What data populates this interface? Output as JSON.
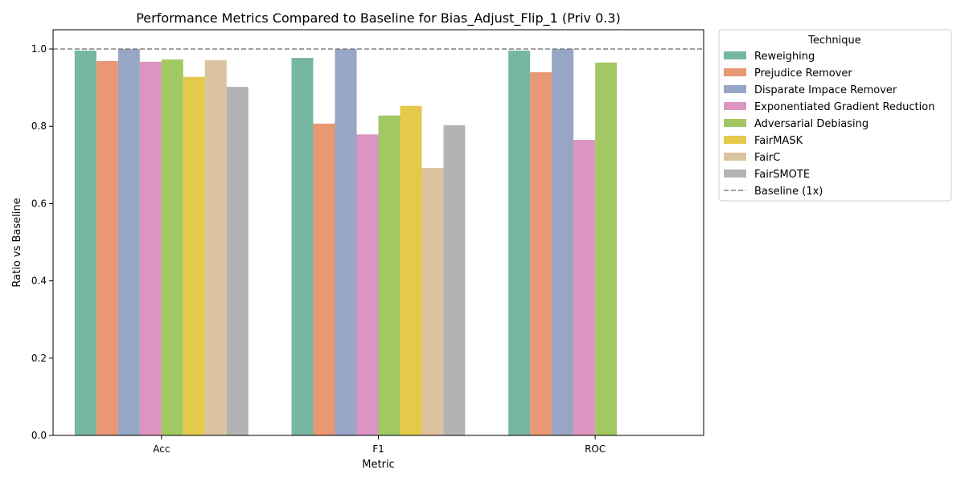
{
  "chart_data": {
    "type": "bar",
    "title": "Performance Metrics Compared to Baseline for Bias_Adjust_Flip_1 (Priv 0.3)",
    "xlabel": "Metric",
    "ylabel": "Ratio vs Baseline",
    "ylim": [
      0,
      1.05
    ],
    "yticks": [
      "0.0",
      "0.2",
      "0.4",
      "0.6",
      "0.8",
      "1.0"
    ],
    "categories": [
      "Acc",
      "F1",
      "ROC"
    ],
    "baseline": {
      "value": 1.0,
      "label": "Baseline (1x)",
      "color": "#808080"
    },
    "legend_title": "Technique",
    "legend_position": "outside-right-top",
    "series": [
      {
        "name": "Reweighing",
        "color": "#76b7a2",
        "values": [
          0.996,
          0.977,
          0.996
        ]
      },
      {
        "name": "Prejudice Remover",
        "color": "#e99875",
        "values": [
          0.969,
          0.807,
          0.94
        ]
      },
      {
        "name": "Disparate Impace Remover",
        "color": "#97a6c4",
        "values": [
          1.0,
          1.0,
          1.0
        ]
      },
      {
        "name": "Exponentiated Gradient Reduction",
        "color": "#dc94c0",
        "values": [
          0.967,
          0.779,
          0.765
        ]
      },
      {
        "name": "Adversarial Debiasing",
        "color": "#a2c863",
        "values": [
          0.973,
          0.828,
          0.965
        ]
      },
      {
        "name": "FairMASK",
        "color": "#e4c94b",
        "values": [
          0.928,
          0.853,
          null
        ]
      },
      {
        "name": "FairC",
        "color": "#dbc39f",
        "values": [
          0.971,
          0.692,
          null
        ]
      },
      {
        "name": "FairSMOTE",
        "color": "#b3b3b3",
        "values": [
          0.902,
          0.803,
          null
        ]
      }
    ]
  }
}
